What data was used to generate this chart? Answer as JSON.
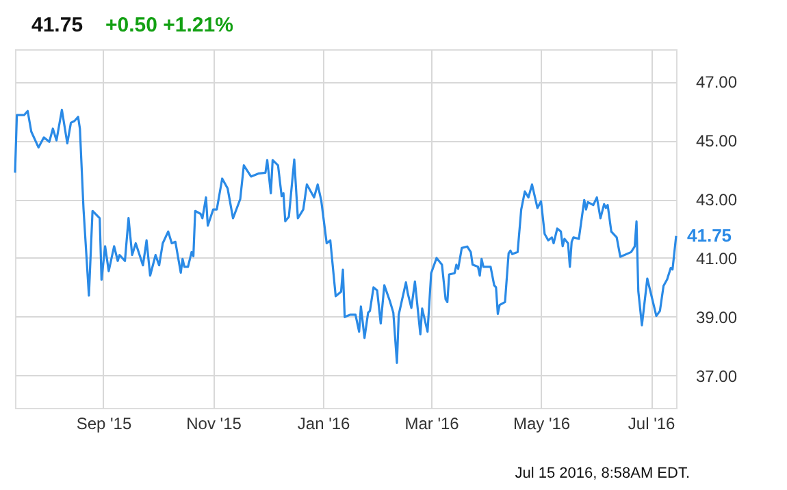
{
  "chart_data": {
    "type": "line",
    "title": "41.75",
    "subtitle": "+0.50  +1.21%",
    "annotations": [
      {
        "text": "41.75",
        "x": "2016-07-15",
        "y": 41.75
      },
      "Jul 15 2016, 8:58AM EDT."
    ],
    "x": [
      "2015-07-14",
      "2015-07-15",
      "2015-07-19",
      "2015-07-21",
      "2015-07-23",
      "2015-07-27",
      "2015-07-30",
      "2015-08-02",
      "2015-08-04",
      "2015-08-06",
      "2015-08-09",
      "2015-08-12",
      "2015-08-14",
      "2015-08-16",
      "2015-08-18",
      "2015-08-19",
      "2015-08-21",
      "2015-08-24",
      "2015-08-26",
      "2015-08-30",
      "2015-08-31",
      "2015-09-02",
      "2015-09-04",
      "2015-09-07",
      "2015-09-09",
      "2015-09-10",
      "2015-09-13",
      "2015-09-15",
      "2015-09-17",
      "2015-09-19",
      "2015-09-23",
      "2015-09-25",
      "2015-09-27",
      "2015-09-30",
      "2015-10-02",
      "2015-10-04",
      "2015-10-07",
      "2015-10-09",
      "2015-10-11",
      "2015-10-14",
      "2015-10-15",
      "2015-10-16",
      "2015-10-18",
      "2015-10-20",
      "2015-10-21",
      "2015-10-22",
      "2015-10-25",
      "2015-10-26",
      "2015-10-28",
      "2015-10-29",
      "2015-11-01",
      "2015-11-03",
      "2015-11-06",
      "2015-11-09",
      "2015-11-12",
      "2015-11-16",
      "2015-11-18",
      "2015-11-22",
      "2015-11-26",
      "2015-11-30",
      "2015-12-01",
      "2015-12-03",
      "2015-12-04",
      "2015-12-07",
      "2015-12-09",
      "2015-12-10",
      "2015-12-11",
      "2015-12-13",
      "2015-12-16",
      "2015-12-18",
      "2015-12-21",
      "2015-12-23",
      "2015-12-27",
      "2015-12-29",
      "2015-12-31",
      "2016-01-03",
      "2016-01-05",
      "2016-01-08",
      "2016-01-11",
      "2016-01-12",
      "2016-01-13",
      "2016-01-16",
      "2016-01-19",
      "2016-01-21",
      "2016-01-22",
      "2016-01-24",
      "2016-01-26",
      "2016-01-27",
      "2016-01-29",
      "2016-01-31",
      "2016-02-02",
      "2016-02-04",
      "2016-02-07",
      "2016-02-09",
      "2016-02-11",
      "2016-02-12",
      "2016-02-16",
      "2016-02-17",
      "2016-02-19",
      "2016-02-21",
      "2016-02-24",
      "2016-02-25",
      "2016-02-28",
      "2016-03-01",
      "2016-03-04",
      "2016-03-07",
      "2016-03-09",
      "2016-03-10",
      "2016-03-11",
      "2016-03-14",
      "2016-03-15",
      "2016-03-16",
      "2016-03-18",
      "2016-03-21",
      "2016-03-23",
      "2016-03-24",
      "2016-03-27",
      "2016-03-28",
      "2016-03-29",
      "2016-03-30",
      "2016-04-03",
      "2016-04-05",
      "2016-04-06",
      "2016-04-07",
      "2016-04-08",
      "2016-04-11",
      "2016-04-13",
      "2016-04-14",
      "2016-04-15",
      "2016-04-18",
      "2016-04-20",
      "2016-04-22",
      "2016-04-24",
      "2016-04-26",
      "2016-04-29",
      "2016-05-01",
      "2016-05-03",
      "2016-05-05",
      "2016-05-07",
      "2016-05-08",
      "2016-05-10",
      "2016-05-12",
      "2016-05-13",
      "2016-05-14",
      "2016-05-16",
      "2016-05-17",
      "2016-05-18",
      "2016-05-19",
      "2016-05-22",
      "2016-05-25",
      "2016-05-26",
      "2016-05-27",
      "2016-05-30",
      "2016-06-01",
      "2016-06-03",
      "2016-06-05",
      "2016-06-06",
      "2016-06-07",
      "2016-06-09",
      "2016-06-12",
      "2016-06-14",
      "2016-06-20",
      "2016-06-22",
      "2016-06-23",
      "2016-06-24",
      "2016-06-26",
      "2016-06-29",
      "2016-07-04",
      "2016-07-06",
      "2016-07-08",
      "2016-07-10",
      "2016-07-12",
      "2016-07-13",
      "2016-07-15"
    ],
    "series": [
      {
        "color": "#2a8ae6",
        "values": [
          43.9,
          45.86,
          45.86,
          46.0,
          45.3,
          44.76,
          45.1,
          44.95,
          45.4,
          45.0,
          46.04,
          44.9,
          45.6,
          45.66,
          45.8,
          45.4,
          42.67,
          39.72,
          42.6,
          42.35,
          40.26,
          41.4,
          40.55,
          41.4,
          40.9,
          41.1,
          40.9,
          42.36,
          41.1,
          41.5,
          40.75,
          41.6,
          40.4,
          41.1,
          40.75,
          41.5,
          41.9,
          41.5,
          41.55,
          40.5,
          40.97,
          40.7,
          40.7,
          41.2,
          41.06,
          42.6,
          42.5,
          42.35,
          43.06,
          42.1,
          42.65,
          42.65,
          43.7,
          43.37,
          42.35,
          43.0,
          44.15,
          43.77,
          43.87,
          43.9,
          44.33,
          43.2,
          44.33,
          44.15,
          43.1,
          43.2,
          42.25,
          42.4,
          44.35,
          42.35,
          42.65,
          43.5,
          43.06,
          43.5,
          42.95,
          41.5,
          41.6,
          39.7,
          39.85,
          40.6,
          38.99,
          39.07,
          39.07,
          38.49,
          39.35,
          38.28,
          39.14,
          39.2,
          40.0,
          39.9,
          38.77,
          40.07,
          39.55,
          39.14,
          37.43,
          39.07,
          40.17,
          39.8,
          39.3,
          40.2,
          38.4,
          39.28,
          38.49,
          40.48,
          41.0,
          40.77,
          39.6,
          39.5,
          40.44,
          40.48,
          40.77,
          40.63,
          41.34,
          41.39,
          41.2,
          40.77,
          40.7,
          40.4,
          40.97,
          40.7,
          40.7,
          40.07,
          40.0,
          39.1,
          39.4,
          39.5,
          41.16,
          41.25,
          41.13,
          41.2,
          42.65,
          43.26,
          43.06,
          43.5,
          42.7,
          42.93,
          41.82,
          41.6,
          41.7,
          41.5,
          42.0,
          41.9,
          41.4,
          41.65,
          41.5,
          40.7,
          41.55,
          41.7,
          41.65,
          42.97,
          42.65,
          42.9,
          42.8,
          43.06,
          42.35,
          42.83,
          42.7,
          42.8,
          41.9,
          41.7,
          41.04,
          41.2,
          41.39,
          42.24,
          39.87,
          38.71,
          40.3,
          39.03,
          39.2,
          40.05,
          40.27,
          40.66,
          40.61,
          41.75
        ]
      }
    ],
    "xlim": [
      "2015-07-14",
      "2016-07-15"
    ],
    "xticks": [
      {
        "value": "2015-09-01",
        "label": "Sep '15"
      },
      {
        "value": "2015-11-01",
        "label": "Nov '15"
      },
      {
        "value": "2016-01-01",
        "label": "Jan '16"
      },
      {
        "value": "2016-03-01",
        "label": "Mar '16"
      },
      {
        "value": "2016-05-01",
        "label": "May '16"
      },
      {
        "value": "2016-07-01",
        "label": "Jul '16"
      }
    ],
    "ylim": [
      35.9,
      48.1
    ],
    "yticks": [
      {
        "value": 37,
        "label": "37.00"
      },
      {
        "value": 39,
        "label": "39.00"
      },
      {
        "value": 41,
        "label": "41.00"
      },
      {
        "value": 43,
        "label": "43.00"
      },
      {
        "value": 45,
        "label": "45.00"
      },
      {
        "value": 47,
        "label": "47.00"
      }
    ],
    "grid": true
  }
}
